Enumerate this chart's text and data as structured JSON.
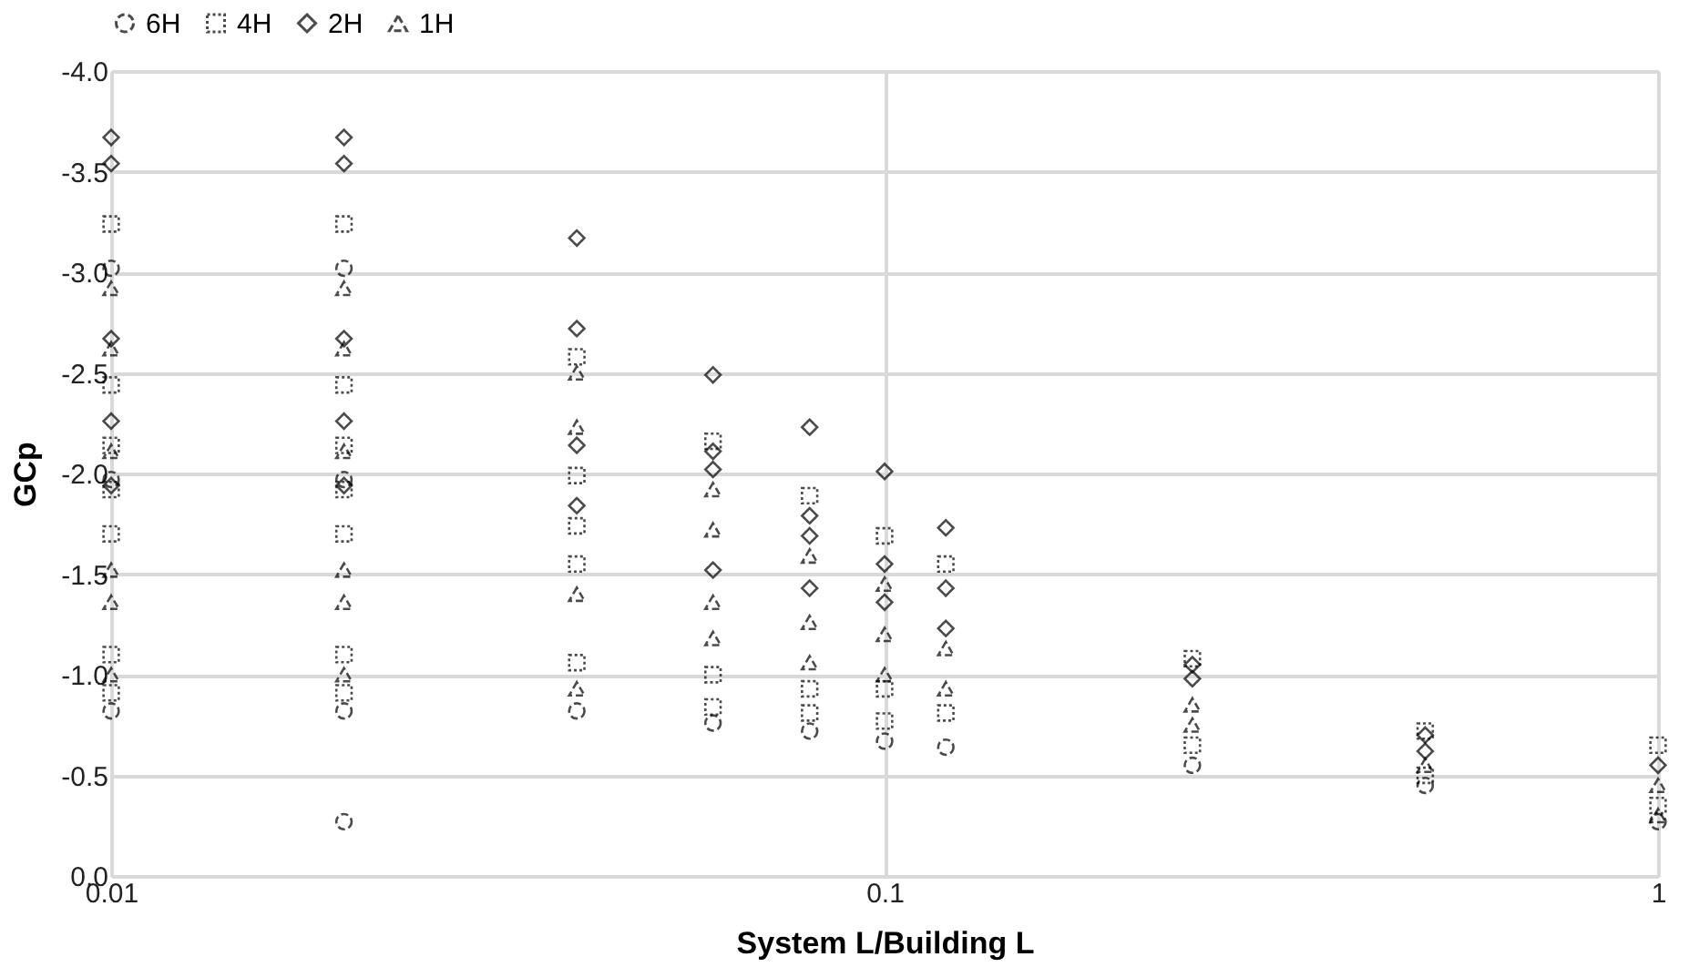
{
  "chart_data": {
    "type": "scatter",
    "xlabel": "System L/Building L",
    "ylabel": "GCp",
    "log": "x",
    "xlim": [
      0.01,
      1
    ],
    "xticks": [
      0.01,
      0.1,
      1
    ],
    "ylim": [
      0,
      -4
    ],
    "yticks": [
      {
        "value": 0,
        "label": "0.0"
      },
      {
        "value": -0.5,
        "label": "-0.5"
      },
      {
        "value": -1,
        "label": "-1.0"
      },
      {
        "value": -1.5,
        "label": "-1.5"
      },
      {
        "value": -2,
        "label": "-2.0"
      },
      {
        "value": -2.5,
        "label": "-2.5"
      },
      {
        "value": -3,
        "label": "-3.0"
      },
      {
        "value": -3.5,
        "label": "-3.5"
      },
      {
        "value": -4,
        "label": "-4.0"
      }
    ],
    "grid": true,
    "legend": "top",
    "series": [
      {
        "name": "6H",
        "color": "#000000",
        "marker": "circle",
        "line_style": "dashed",
        "x": [
          0.01,
          0.01,
          0.01,
          0.02,
          0.02,
          0.02,
          0.02,
          0.04,
          0.06,
          0.08,
          0.1,
          0.12,
          0.25,
          0.5,
          1
        ],
        "values": [
          -3.02,
          -1.97,
          -0.82,
          -3.02,
          -1.97,
          -0.82,
          -0.27,
          -0.82,
          -0.76,
          -0.72,
          -0.67,
          -0.64,
          -0.55,
          -0.45,
          -0.27
        ]
      },
      {
        "name": "4H",
        "color": "#000000",
        "marker": "square",
        "line_style": "dotted",
        "x": [
          0.01,
          0.01,
          0.01,
          0.01,
          0.01,
          0.01,
          0.01,
          0.02,
          0.02,
          0.02,
          0.02,
          0.02,
          0.02,
          0.02,
          0.04,
          0.04,
          0.04,
          0.04,
          0.04,
          0.06,
          0.06,
          0.06,
          0.08,
          0.08,
          0.08,
          0.1,
          0.1,
          0.1,
          0.12,
          0.12,
          0.25,
          0.25,
          0.5,
          0.5,
          1,
          1
        ],
        "values": [
          -3.24,
          -2.44,
          -2.14,
          -1.92,
          -1.7,
          -1.1,
          -0.91,
          -3.24,
          -2.44,
          -2.14,
          -1.92,
          -1.7,
          -1.1,
          -0.91,
          -2.58,
          -1.99,
          -1.74,
          -1.55,
          -1.06,
          -2.16,
          -1.0,
          -0.84,
          -1.89,
          -0.93,
          -0.81,
          -1.69,
          -0.93,
          -0.77,
          -1.55,
          -0.81,
          -1.08,
          -0.65,
          -0.72,
          -0.5,
          -0.65,
          -0.35
        ]
      },
      {
        "name": "2H",
        "color": "#000000",
        "marker": "diamond",
        "line_style": "solid",
        "x": [
          0.01,
          0.01,
          0.01,
          0.01,
          0.01,
          0.02,
          0.02,
          0.02,
          0.02,
          0.02,
          0.04,
          0.04,
          0.04,
          0.04,
          0.06,
          0.06,
          0.06,
          0.06,
          0.08,
          0.08,
          0.08,
          0.08,
          0.1,
          0.1,
          0.1,
          0.12,
          0.12,
          0.12,
          0.25,
          0.25,
          0.5,
          0.5,
          1
        ],
        "values": [
          -3.67,
          -3.54,
          -2.67,
          -2.26,
          -1.94,
          -3.67,
          -3.54,
          -2.67,
          -2.26,
          -1.94,
          -3.17,
          -2.72,
          -2.14,
          -1.84,
          -2.49,
          -2.11,
          -2.02,
          -1.52,
          -2.23,
          -1.79,
          -1.69,
          -1.43,
          -2.01,
          -1.55,
          -1.36,
          -1.73,
          -1.43,
          -1.23,
          -1.05,
          -0.98,
          -0.7,
          -0.62,
          -0.55
        ]
      },
      {
        "name": "1H",
        "color": "#000000",
        "marker": "triangle",
        "line_style": "dashed",
        "x": [
          0.01,
          0.01,
          0.01,
          0.01,
          0.01,
          0.01,
          0.02,
          0.02,
          0.02,
          0.02,
          0.02,
          0.02,
          0.04,
          0.04,
          0.04,
          0.04,
          0.06,
          0.06,
          0.06,
          0.06,
          0.08,
          0.08,
          0.08,
          0.1,
          0.1,
          0.1,
          0.12,
          0.12,
          0.25,
          0.25,
          0.5,
          1,
          1
        ],
        "values": [
          -2.92,
          -2.62,
          -2.11,
          -1.52,
          -1.36,
          -1.0,
          -2.92,
          -2.62,
          -2.11,
          -1.52,
          -1.36,
          -1.0,
          -2.5,
          -2.23,
          -1.4,
          -0.93,
          -1.92,
          -1.72,
          -1.36,
          -1.18,
          -1.59,
          -1.26,
          -1.06,
          -1.45,
          -1.2,
          -1.0,
          -1.13,
          -0.93,
          -0.85,
          -0.75,
          -0.55,
          -0.45,
          -0.3
        ]
      }
    ]
  }
}
